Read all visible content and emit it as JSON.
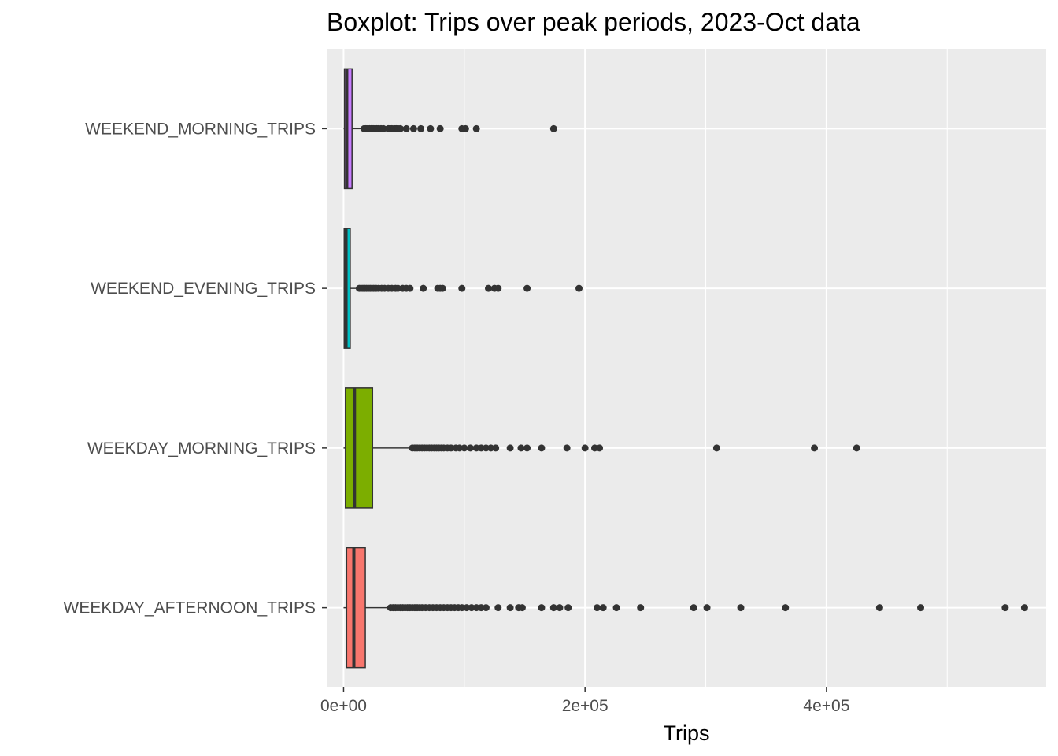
{
  "chart_data": {
    "type": "boxplot",
    "orientation": "horizontal",
    "title": "Boxplot: Trips over peak periods, 2023-Oct data",
    "xlabel": "Trips",
    "ylabel": "",
    "xlim": [
      -14000,
      582000
    ],
    "x_ticks": [
      {
        "value": 0,
        "label": "0e+00"
      },
      {
        "value": 200000,
        "label": "2e+05"
      },
      {
        "value": 400000,
        "label": "4e+05"
      }
    ],
    "x_minor_ticks": [
      100000,
      300000,
      500000
    ],
    "grid": true,
    "legend": "none",
    "panel_background": "#ebebeb",
    "categories": [
      "WEEKEND_MORNING_TRIPS",
      "WEEKEND_EVENING_TRIPS",
      "WEEKDAY_MORNING_TRIPS",
      "WEEKDAY_AFTERNOON_TRIPS"
    ],
    "series": [
      {
        "category": "WEEKEND_MORNING_TRIPS",
        "color": "#c77cff",
        "min": 0,
        "q1": 700,
        "median": 2600,
        "q3": 7000,
        "whisker_high": 16500,
        "outliers": [
          17000,
          18500,
          20000,
          21500,
          23000,
          24500,
          26000,
          27500,
          29000,
          31000,
          33000,
          37000,
          38500,
          40000,
          42000,
          43500,
          45000,
          47000,
          52000,
          58000,
          64000,
          72000,
          80000,
          98000,
          101000,
          110000,
          174000
        ]
      },
      {
        "category": "WEEKEND_EVENING_TRIPS",
        "color": "#00bfc4",
        "min": 0,
        "q1": 500,
        "median": 2000,
        "q3": 5500,
        "whisker_high": 12000,
        "outliers": [
          13000,
          14500,
          16000,
          17500,
          19000,
          20500,
          22000,
          23500,
          25000,
          27000,
          29000,
          31500,
          34000,
          37000,
          40000,
          43000,
          45000,
          49000,
          52000,
          55000,
          66000,
          78000,
          80000,
          82000,
          98000,
          120000,
          125000,
          128000,
          152000,
          195000
        ]
      },
      {
        "category": "WEEKDAY_MORNING_TRIPS",
        "color": "#7cae00",
        "min": 0,
        "q1": 1500,
        "median": 9000,
        "q3": 24000,
        "whisker_high": 56000,
        "outliers": [
          57000,
          59000,
          61000,
          63000,
          65000,
          67000,
          69000,
          71000,
          73000,
          75000,
          77000,
          79000,
          81000,
          83000,
          86000,
          89000,
          93000,
          96000,
          100000,
          105000,
          110000,
          114000,
          118000,
          122000,
          126000,
          138000,
          147000,
          152000,
          164000,
          185000,
          200000,
          208000,
          212000,
          309000,
          390000,
          425000
        ]
      },
      {
        "category": "WEEKDAY_AFTERNOON_TRIPS",
        "color": "#f8766d",
        "min": 0,
        "q1": 2500,
        "median": 8500,
        "q3": 18000,
        "whisker_high": 38000,
        "outliers": [
          39000,
          41000,
          43000,
          45000,
          47000,
          49000,
          51000,
          53000,
          55000,
          57000,
          59000,
          61000,
          63000,
          65000,
          68000,
          71000,
          74000,
          77000,
          80000,
          83000,
          86000,
          89000,
          92000,
          95000,
          98000,
          102000,
          106000,
          110000,
          114000,
          118000,
          128000,
          138000,
          145000,
          148000,
          164000,
          174000,
          179000,
          186000,
          210000,
          215000,
          226000,
          246000,
          290000,
          301000,
          329000,
          366000,
          444000,
          478000,
          548000,
          564000
        ]
      }
    ]
  }
}
